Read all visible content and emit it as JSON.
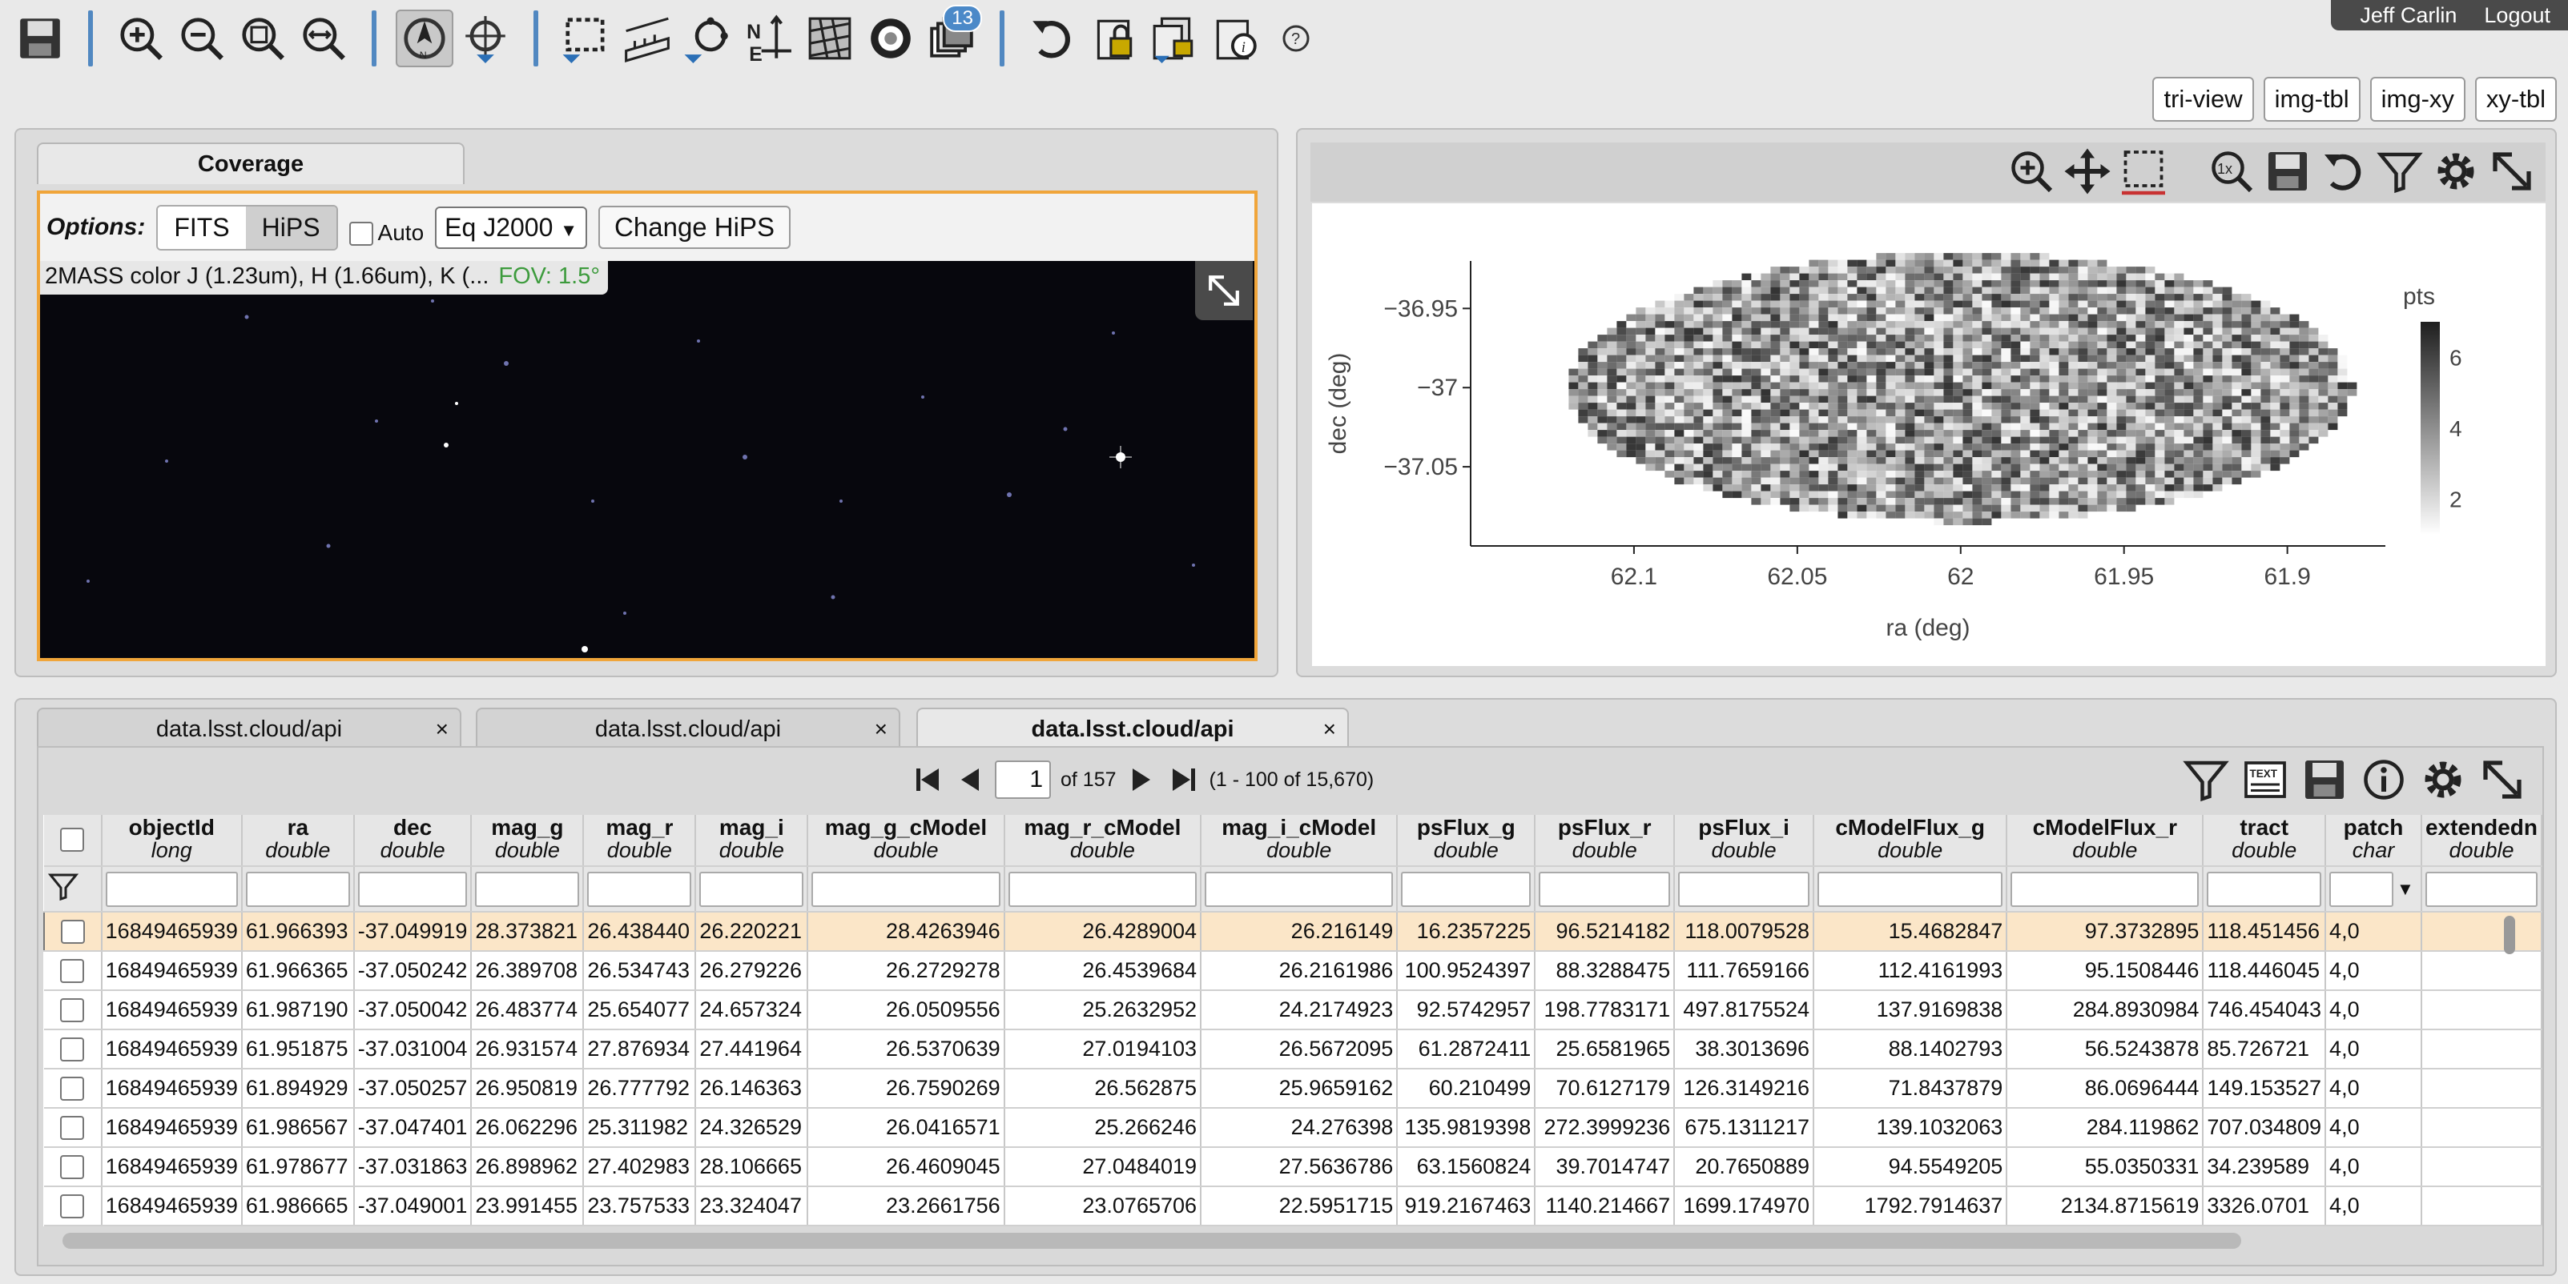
{
  "user": {
    "name": "Jeff Carlin",
    "logout": "Logout"
  },
  "toolbar": {
    "icons": [
      "save-icon",
      "zoom-in-icon",
      "zoom-out-icon",
      "zoom-fit-icon",
      "zoom-fill-icon",
      "north-arrow-icon",
      "recenter-icon",
      "select-area-icon",
      "ruler-icon",
      "markers-icon",
      "flip-icon",
      "grid-overlay-icon",
      "color-stretch-icon",
      "image-layers-icon",
      "restore-icon",
      "lock-image-icon",
      "lock-wcs-icon",
      "fits-header-icon",
      "help-icon"
    ],
    "layers_badge": "13"
  },
  "layout_buttons": [
    "tri-view",
    "img-tbl",
    "img-xy",
    "xy-tbl"
  ],
  "coverage": {
    "tab_label": "Coverage",
    "options_label": "Options:",
    "fits_label": "FITS",
    "hips_label": "HiPS",
    "auto_label": "Auto",
    "coord_select": "Eq J2000",
    "change_hips": "Change HiPS",
    "hips_title": "2MASS color J (1.23um), H (1.66um), K (...",
    "fov": "FOV: 1.5°"
  },
  "chart": {
    "xlabel": "ra (deg)",
    "ylabel": "dec (deg)",
    "colorbar_title": "pts",
    "x_ticks": [
      "62.1",
      "62.05",
      "62",
      "61.95",
      "61.9"
    ],
    "y_ticks": [
      "−36.95",
      "−37",
      "−37.05"
    ],
    "colorbar_ticks": [
      "6",
      "4",
      "2"
    ]
  },
  "chart_data": {
    "type": "heatmap",
    "xlabel": "ra (deg)",
    "ylabel": "dec (deg)",
    "xlim": [
      62.15,
      61.87
    ],
    "ylim": [
      -37.1,
      -36.92
    ],
    "x_ticks": [
      62.1,
      62.05,
      62,
      61.95,
      61.9
    ],
    "y_ticks": [
      -36.95,
      -37,
      -37.05
    ],
    "colorbar": {
      "title": "pts",
      "range": [
        1,
        7
      ],
      "ticks": [
        2,
        4,
        6
      ]
    },
    "region": {
      "shape": "ellipse",
      "center": [
        62.0,
        -37.0
      ],
      "ra_radius": 0.12,
      "dec_radius": 0.085
    }
  },
  "table": {
    "tabs": [
      {
        "label": "data.lsst.cloud/api",
        "close": "×"
      },
      {
        "label": "data.lsst.cloud/api",
        "close": "×"
      },
      {
        "label": "data.lsst.cloud/api",
        "close": "×"
      }
    ],
    "page": "1",
    "of_pages": "of 157",
    "range": "(1 - 100 of 15,670)",
    "columns": [
      {
        "name": "objectId",
        "type": "long"
      },
      {
        "name": "ra",
        "type": "double"
      },
      {
        "name": "dec",
        "type": "double"
      },
      {
        "name": "mag_g",
        "type": "double"
      },
      {
        "name": "mag_r",
        "type": "double"
      },
      {
        "name": "mag_i",
        "type": "double"
      },
      {
        "name": "mag_g_cModel",
        "type": "double"
      },
      {
        "name": "mag_r_cModel",
        "type": "double"
      },
      {
        "name": "mag_i_cModel",
        "type": "double"
      },
      {
        "name": "psFlux_g",
        "type": "double"
      },
      {
        "name": "psFlux_r",
        "type": "double"
      },
      {
        "name": "psFlux_i",
        "type": "double"
      },
      {
        "name": "cModelFlux_g",
        "type": "double"
      },
      {
        "name": "cModelFlux_r",
        "type": "double"
      },
      {
        "name": "tract",
        "type": "double"
      },
      {
        "name": "patch",
        "type": "char"
      },
      {
        "name": "extendedn",
        "type": "double"
      }
    ],
    "rows": [
      [
        "16849465939",
        "61.966393",
        "-37.049919",
        "28.373821",
        "26.438440",
        "26.220221",
        "28.4263946",
        "26.4289004",
        "26.216149",
        "16.2357225",
        "96.5214182",
        "118.0079528",
        "15.4682847",
        "97.3732895",
        "118.451456",
        "4,0",
        ""
      ],
      [
        "16849465939",
        "61.966365",
        "-37.050242",
        "26.389708",
        "26.534743",
        "26.279226",
        "26.2729278",
        "26.4539684",
        "26.2161986",
        "100.9524397",
        "88.3288475",
        "111.7659166",
        "112.4161993",
        "95.1508446",
        "118.446045",
        "4,0",
        ""
      ],
      [
        "16849465939",
        "61.987190",
        "-37.050042",
        "26.483774",
        "25.654077",
        "24.657324",
        "26.0509556",
        "25.2632952",
        "24.2174923",
        "92.5742957",
        "198.7783171",
        "497.8175524",
        "137.9169838",
        "284.8930984",
        "746.454043",
        "4,0",
        ""
      ],
      [
        "16849465939",
        "61.951875",
        "-37.031004",
        "26.931574",
        "27.876934",
        "27.441964",
        "26.5370639",
        "27.0194103",
        "26.5672095",
        "61.2872411",
        "25.6581965",
        "38.3013696",
        "88.1402793",
        "56.5243878",
        "85.726721",
        "4,0",
        ""
      ],
      [
        "16849465939",
        "61.894929",
        "-37.050257",
        "26.950819",
        "26.777792",
        "26.146363",
        "26.7590269",
        "26.562875",
        "25.9659162",
        "60.210499",
        "70.6127179",
        "126.3149216",
        "71.8437879",
        "86.0696444",
        "149.153527",
        "4,0",
        ""
      ],
      [
        "16849465939",
        "61.986567",
        "-37.047401",
        "26.062296",
        "25.311982",
        "24.326529",
        "26.0416571",
        "25.266246",
        "24.276398",
        "135.9819398",
        "272.3999236",
        "675.1311217",
        "139.1032063",
        "284.119862",
        "707.034809",
        "4,0",
        ""
      ],
      [
        "16849465939",
        "61.978677",
        "-37.031863",
        "26.898962",
        "27.402983",
        "28.106665",
        "26.4609045",
        "27.0484019",
        "27.5636786",
        "63.1560824",
        "39.7014747",
        "20.7650889",
        "94.5549205",
        "55.0350331",
        "34.239589",
        "4,0",
        ""
      ],
      [
        "16849465939",
        "61.986665",
        "-37.049001",
        "23.991455",
        "23.757533",
        "23.324047",
        "23.2661756",
        "23.0765706",
        "22.5951715",
        "919.2167463",
        "1140.214667",
        "1699.174970",
        "1792.7914637",
        "2134.8715619",
        "3326.0701",
        "4,0",
        ""
      ]
    ]
  }
}
